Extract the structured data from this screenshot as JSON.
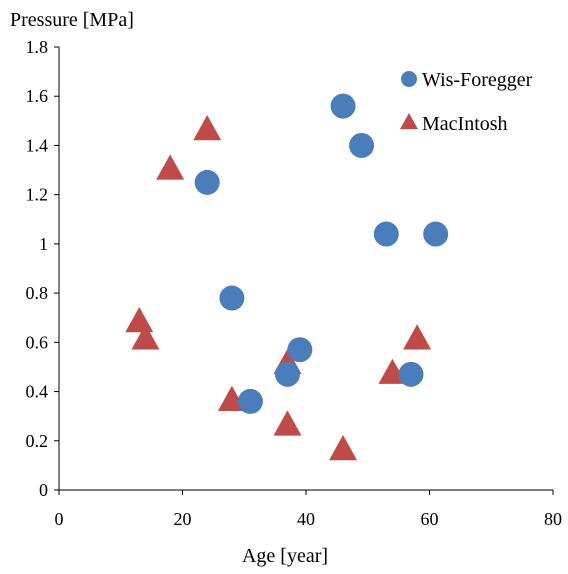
{
  "chart_data": {
    "type": "scatter",
    "ylabel": "Pressure [MPa]",
    "xlabel": "Age [year]",
    "xlim": [
      0,
      80
    ],
    "ylim": [
      0,
      1.8
    ],
    "x_ticks": [
      "0",
      "20",
      "40",
      "60",
      "80"
    ],
    "y_ticks": [
      "0",
      "0.2",
      "0.4",
      "0.6",
      "0.8",
      "1",
      "1.2",
      "1.4",
      "1.6",
      "1.8"
    ],
    "grid": false,
    "legend_position": "top-right",
    "series": [
      {
        "name": "Wis-Foregger",
        "marker": "circle",
        "color": "#4a7ebb",
        "points": [
          {
            "x": 24,
            "y": 1.25
          },
          {
            "x": 46,
            "y": 1.56
          },
          {
            "x": 49,
            "y": 1.4
          },
          {
            "x": 53,
            "y": 1.04
          },
          {
            "x": 61,
            "y": 1.04
          },
          {
            "x": 28,
            "y": 0.78
          },
          {
            "x": 39,
            "y": 0.57
          },
          {
            "x": 37,
            "y": 0.47
          },
          {
            "x": 57,
            "y": 0.47
          },
          {
            "x": 31,
            "y": 0.36
          }
        ]
      },
      {
        "name": "MacIntosh",
        "marker": "triangle",
        "color": "#be4b48",
        "points": [
          {
            "x": 24,
            "y": 1.46
          },
          {
            "x": 18,
            "y": 1.3
          },
          {
            "x": 13,
            "y": 0.68
          },
          {
            "x": 14,
            "y": 0.61
          },
          {
            "x": 37,
            "y": 0.51
          },
          {
            "x": 28,
            "y": 0.36
          },
          {
            "x": 37,
            "y": 0.26
          },
          {
            "x": 46,
            "y": 0.16
          },
          {
            "x": 54,
            "y": 0.47
          },
          {
            "x": 58,
            "y": 0.61
          }
        ]
      }
    ]
  }
}
